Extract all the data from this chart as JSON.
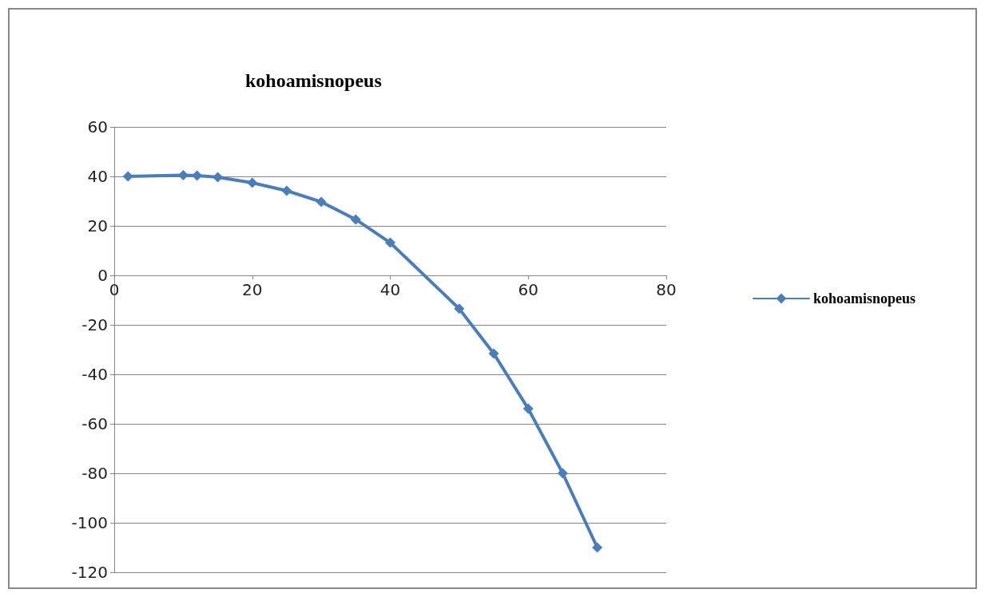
{
  "chart_data": {
    "type": "line",
    "title": "kohoamisnopeus",
    "series": [
      {
        "name": "kohoamisnopeus",
        "color": "#4a7ebb",
        "x": [
          2,
          10,
          12,
          15,
          20,
          25,
          30,
          35,
          40,
          50,
          55,
          60,
          65,
          70
        ],
        "values": [
          40,
          40.5,
          40.3,
          39.7,
          37.4,
          34.2,
          29.7,
          22.6,
          13.2,
          -13.5,
          -31.6,
          -53.9,
          -80,
          -110
        ]
      }
    ],
    "xlim": [
      0,
      80
    ],
    "xticks": [
      0,
      20,
      40,
      60,
      80
    ],
    "ylim": [
      -120,
      60
    ],
    "yticks": [
      -120,
      -100,
      -80,
      -60,
      -40,
      -20,
      0,
      20,
      40,
      60
    ],
    "grid": "y",
    "legend": "right",
    "marker": "diamond",
    "line_style": "solid"
  }
}
